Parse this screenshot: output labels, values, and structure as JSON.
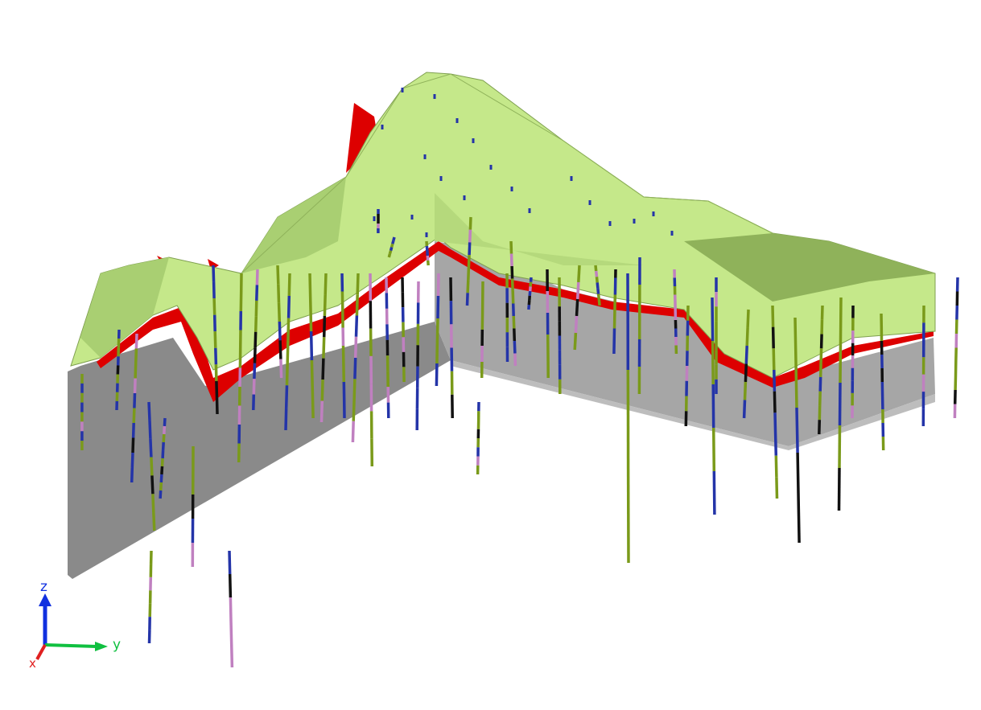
{
  "viewer": {
    "background": "#ffffff",
    "colors": {
      "terrain_surface": "#c5e88a",
      "terrain_edge": "#7fa050",
      "terrain_shade": "#9cbf68",
      "fault_surface": "#dd0000",
      "block_front": "#8a8a8a",
      "block_side": "#a9a9a9",
      "block_light": "#c4c4c4",
      "drillhole_lithology_a": "#7a9a1a",
      "drillhole_lithology_b": "#2434a8",
      "drillhole_lithology_c": "#111111",
      "drillhole_lithology_d": "#c080c0"
    }
  },
  "axis_triad": {
    "z_label": "z",
    "y_label": "y",
    "x_label": "x",
    "z_color": "#1030e0",
    "y_color": "#10c040",
    "x_color": "#e02020"
  }
}
